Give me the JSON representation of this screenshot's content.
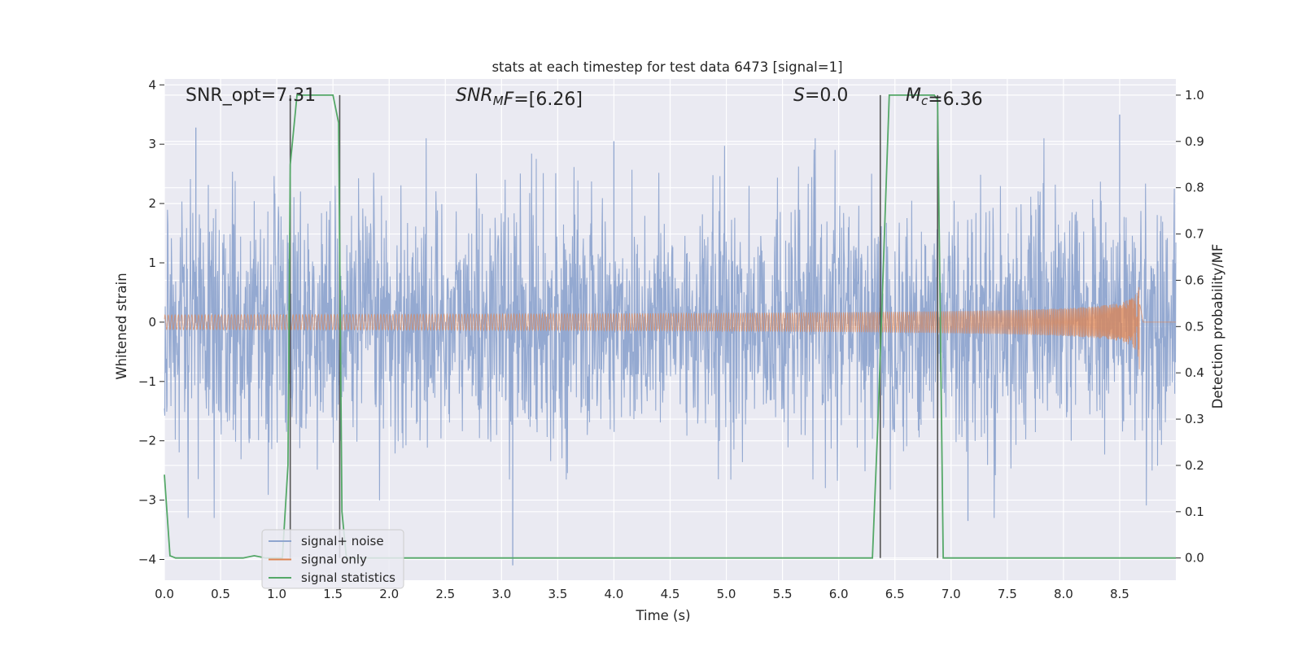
{
  "chart_data": {
    "type": "line",
    "title": "stats at each timestep for test data 6473 [signal=1]",
    "xlabel": "Time (s)",
    "ylabel_left": "Whitened strain",
    "ylabel_right": "Detection probability/MF",
    "xlim": [
      0.0,
      9.0
    ],
    "ylim_left": [
      -4.35,
      4.1
    ],
    "ylim_right": [
      -0.048,
      1.035
    ],
    "x_ticks": [
      "0.0",
      "0.5",
      "1.0",
      "1.5",
      "2.0",
      "2.5",
      "3.0",
      "3.5",
      "4.0",
      "4.5",
      "5.0",
      "5.5",
      "6.0",
      "6.5",
      "7.0",
      "7.5",
      "8.0",
      "8.5"
    ],
    "y_left_ticks": [
      "−4",
      "−3",
      "−2",
      "−1",
      "0",
      "1",
      "2",
      "3",
      "4"
    ],
    "y_right_ticks": [
      "0.0",
      "0.1",
      "0.2",
      "0.3",
      "0.4",
      "0.5",
      "0.6",
      "0.7",
      "0.8",
      "0.9",
      "1.0"
    ],
    "grid": true,
    "legend_position": "lower-left",
    "annotations": [
      {
        "parts": [
          {
            "t": "SNR_opt=7.31",
            "italic": false
          }
        ]
      },
      {
        "parts": [
          {
            "t": "SNR",
            "italic": true
          },
          {
            "t": "M",
            "italic": true,
            "sub": true
          },
          {
            "t": "F",
            "italic": true
          },
          {
            "t": "=[6.26]",
            "italic": false
          }
        ]
      },
      {
        "parts": [
          {
            "t": "S",
            "italic": true
          },
          {
            "t": "=0.0",
            "italic": false
          }
        ]
      },
      {
        "parts": [
          {
            "t": "M",
            "italic": true
          },
          {
            "t": "c",
            "italic": true,
            "sub": true
          },
          {
            "t": "=6.36",
            "italic": false
          }
        ]
      }
    ],
    "series": [
      {
        "name": "signal+ noise",
        "color": "#8fa5cf",
        "axis": "left",
        "style": "noise",
        "x_range": [
          0.0,
          9.0
        ],
        "sigma": 1.0,
        "peaks": [
          [
            0.28,
            3.28
          ],
          [
            1.57,
            -2.0
          ],
          [
            3.1,
            -4.1
          ],
          [
            4.0,
            3.05
          ],
          [
            8.5,
            3.5
          ],
          [
            7.15,
            -3.35
          ]
        ]
      },
      {
        "name": "signal only",
        "color": "#dd8452",
        "axis": "left",
        "style": "chirp",
        "x_start": 0.0,
        "x_end": 8.68,
        "amplitude_at_end": 0.85
      },
      {
        "name": "signal statistics",
        "color": "#55a868",
        "axis": "right",
        "style": "line",
        "x": [
          0.0,
          0.05,
          0.1,
          0.7,
          0.8,
          0.9,
          1.05,
          1.1,
          1.12,
          1.18,
          1.25,
          1.5,
          1.55,
          1.58,
          1.62,
          6.3,
          6.35,
          6.45,
          6.85,
          6.88,
          6.93,
          6.98,
          9.0
        ],
        "y": [
          0.18,
          0.005,
          0.0,
          0.0,
          0.005,
          0.0,
          0.0,
          0.2,
          0.85,
          1.0,
          1.0,
          1.0,
          0.94,
          0.1,
          0.0,
          0.0,
          0.3,
          1.0,
          1.0,
          0.99,
          0.0,
          0.0,
          0.0
        ]
      }
    ],
    "vlines": {
      "color": "#555555",
      "x": [
        1.12,
        1.56,
        6.37,
        6.88
      ],
      "y_range": [
        0.0,
        1.0
      ]
    }
  }
}
